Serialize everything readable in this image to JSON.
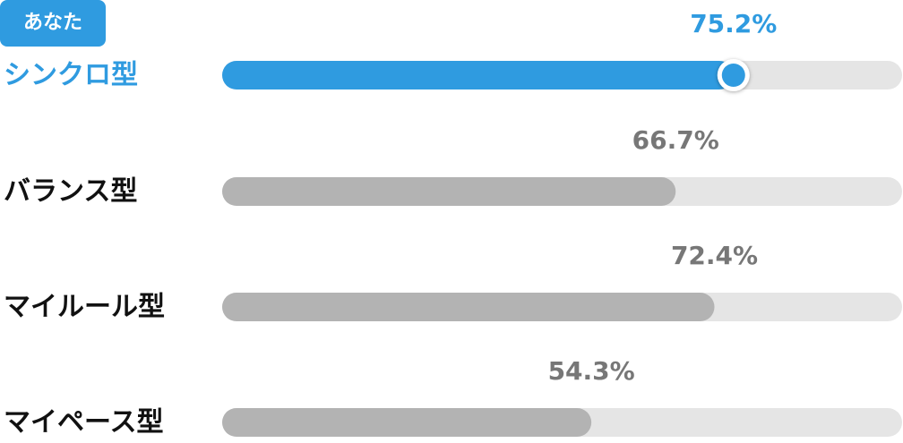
{
  "chart_data": {
    "type": "bar",
    "orientation": "horizontal",
    "badge": "あなた",
    "categories": [
      "シンクロ型",
      "バランス型",
      "マイルール型",
      "マイペース型"
    ],
    "values": [
      75.2,
      66.7,
      72.4,
      54.3
    ],
    "value_labels": [
      "75.2%",
      "66.7%",
      "72.4%",
      "54.3%"
    ],
    "xlim": [
      0,
      100
    ],
    "highlight": 0,
    "color": "#b3b3b3",
    "highlight_color": "#2f9be0",
    "track_color": "#e5e5e5"
  }
}
